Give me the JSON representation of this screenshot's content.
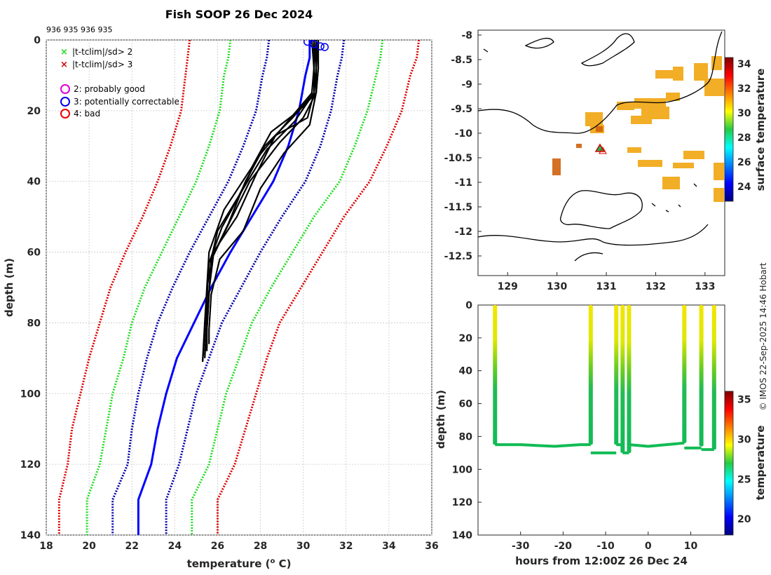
{
  "title": "Fish SOOP 26 Dec 2024",
  "station_ids": "936 935 936 935",
  "credit": "© IMOS 22-Sep-2025 14:46 Hobart",
  "legend": {
    "x_green": "|t-tclim|/sd> 2",
    "x_red": "|t-tclim|/sd> 3",
    "flag2": "2: probably good",
    "flag3": "3: potentially correctable",
    "flag4": "4: bad"
  },
  "colors": {
    "profile": "#000000",
    "climatology": "#0000ff",
    "sd1": "#0000aa",
    "sd2": "#22dd22",
    "sd3": "#dd0000",
    "flag2": "#dd00dd",
    "flag3": "#0000ee",
    "flag4": "#ee0000",
    "coast": "#000000",
    "sst": "#f0a000",
    "marker": "#dd0000"
  },
  "chart_data": [
    {
      "type": "line",
      "name": "profile",
      "title": "Fish SOOP 26 Dec 2024",
      "xlabel": "temperature (",
      "xlabel_sup": "o",
      "xlabel_end": " C)",
      "ylabel": "depth (m)",
      "xlim": [
        18,
        36
      ],
      "ylim": [
        140,
        0
      ],
      "xticks": [
        18,
        20,
        22,
        24,
        26,
        28,
        30,
        32,
        34,
        36
      ],
      "yticks": [
        0,
        20,
        40,
        60,
        80,
        100,
        120,
        140
      ],
      "depth": [
        0,
        5,
        10,
        20,
        30,
        40,
        50,
        60,
        70,
        80,
        90,
        100,
        110,
        120,
        130,
        140
      ],
      "climatology_mean": [
        30.3,
        30.3,
        30.1,
        29.8,
        29.3,
        28.6,
        27.6,
        26.6,
        25.7,
        24.9,
        24.1,
        23.6,
        23.2,
        22.9,
        22.3,
        22.3
      ],
      "sd_bands": [
        {
          "name": "+1sd",
          "values": [
            31.9,
            31.8,
            31.6,
            31.3,
            30.8,
            30.1,
            29.0,
            28.0,
            27.1,
            26.2,
            25.6,
            25.0,
            24.6,
            24.2,
            23.6,
            23.6
          ]
        },
        {
          "name": "-1sd",
          "values": [
            28.4,
            28.3,
            28.1,
            27.8,
            27.2,
            26.5,
            25.6,
            24.7,
            23.9,
            23.2,
            22.7,
            22.3,
            22.0,
            21.8,
            21.1,
            21.1
          ]
        },
        {
          "name": "+2sd",
          "values": [
            33.7,
            33.6,
            33.4,
            33.0,
            32.4,
            31.7,
            30.5,
            29.5,
            28.5,
            27.6,
            27.0,
            26.4,
            26.0,
            25.6,
            24.8,
            24.8
          ]
        },
        {
          "name": "-2sd",
          "values": [
            26.6,
            26.5,
            26.3,
            26.1,
            25.6,
            25.0,
            24.2,
            23.4,
            22.6,
            22.0,
            21.6,
            21.1,
            20.8,
            20.5,
            19.9,
            19.9
          ]
        },
        {
          "name": "+3sd",
          "values": [
            35.4,
            35.3,
            35.0,
            34.6,
            33.9,
            33.1,
            31.9,
            30.9,
            29.9,
            28.9,
            28.3,
            27.8,
            27.3,
            26.8,
            26.0,
            26.0
          ]
        },
        {
          "name": "-3sd",
          "values": [
            24.7,
            24.6,
            24.5,
            24.3,
            23.8,
            23.2,
            22.5,
            21.7,
            21.0,
            20.5,
            20.0,
            19.6,
            19.2,
            19.0,
            18.6,
            18.6
          ]
        }
      ],
      "profiles": [
        {
          "t": [
            30.4,
            30.5,
            30.5,
            30.2,
            28.7,
            27.8,
            26.9,
            25.8,
            25.5,
            25.5,
            25.4
          ],
          "d": [
            0,
            8,
            15,
            22,
            27,
            38,
            50,
            60,
            70,
            80,
            90
          ]
        },
        {
          "t": [
            30.6,
            30.6,
            30.5,
            29.5,
            28.2,
            27.3,
            26.5,
            25.7,
            25.6,
            25.5,
            25.5
          ],
          "d": [
            0,
            8,
            15,
            22,
            30,
            40,
            52,
            62,
            72,
            82,
            88
          ]
        },
        {
          "t": [
            30.5,
            30.6,
            30.6,
            30.3,
            29.1,
            28.0,
            27.2,
            26.1,
            25.7,
            25.6,
            25.6
          ],
          "d": [
            0,
            8,
            15,
            24,
            32,
            42,
            54,
            62,
            72,
            82,
            86
          ]
        },
        {
          "t": [
            30.7,
            30.7,
            30.6,
            29.8,
            28.5,
            27.6,
            26.3,
            25.6,
            25.5,
            25.4,
            25.3
          ],
          "d": [
            0,
            8,
            15,
            20,
            26,
            36,
            48,
            60,
            70,
            80,
            91
          ]
        },
        {
          "t": [
            30.5,
            30.5,
            30.4,
            29.0,
            27.9,
            27.0,
            26.0,
            25.7,
            25.6,
            25.5,
            25.4
          ],
          "d": [
            0,
            8,
            15,
            25,
            33,
            44,
            54,
            62,
            72,
            82,
            89
          ]
        },
        {
          "t": [
            30.6,
            30.7,
            30.6,
            30.0,
            28.9,
            27.5,
            26.6,
            25.8,
            25.6,
            25.5,
            25.5
          ],
          "d": [
            0,
            8,
            15,
            22,
            29,
            40,
            51,
            61,
            71,
            81,
            87
          ]
        },
        {
          "t": [
            30.6,
            30.6,
            30.5,
            29.6,
            28.3,
            27.2,
            26.2,
            25.6,
            25.5,
            25.4,
            25.3
          ],
          "d": [
            0,
            8,
            15,
            23,
            31,
            42,
            53,
            63,
            73,
            83,
            91
          ]
        }
      ],
      "flag3_points": [
        [
          30.2,
          0.5
        ],
        [
          30.5,
          1.2
        ],
        [
          30.8,
          1.8
        ],
        [
          31.0,
          2.0
        ]
      ]
    },
    {
      "type": "heatmap",
      "name": "map",
      "xlim": [
        128.4,
        133.4
      ],
      "ylim": [
        -12.9,
        -7.9
      ],
      "xticks": [
        129,
        130,
        131,
        132,
        133
      ],
      "yticks": [
        -8,
        -8.5,
        -9,
        -9.5,
        -10,
        -10.5,
        -11,
        -11.5,
        -12,
        -12.5
      ],
      "colorbar_label": "surface temperature",
      "colorbar_range": [
        22.8,
        34.5
      ],
      "colorbar_ticks": [
        24,
        26,
        28,
        30,
        32,
        34
      ],
      "drop_location": [
        130.9,
        -10.35
      ]
    },
    {
      "type": "scatter",
      "name": "time-depth",
      "xlabel": "hours from 12:00Z 26 Dec 24",
      "ylabel": "depth (m)",
      "xlim": [
        -40,
        18
      ],
      "ylim": [
        140,
        0
      ],
      "xticks": [
        -30,
        -20,
        -10,
        0,
        10
      ],
      "yticks": [
        0,
        20,
        40,
        60,
        80,
        100,
        120,
        140
      ],
      "colorbar_label": "temperature",
      "colorbar_range": [
        18,
        36
      ],
      "colorbar_ticks": [
        20,
        25,
        30,
        35
      ],
      "drops": [
        {
          "h": -36,
          "max_depth": 85
        },
        {
          "h": -13.5,
          "max_depth": 85
        },
        {
          "h": -7.5,
          "max_depth": 85
        },
        {
          "h": -6,
          "max_depth": 90
        },
        {
          "h": -4.5,
          "max_depth": 90
        },
        {
          "h": 8.5,
          "max_depth": 84
        },
        {
          "h": 12.5,
          "max_depth": 86
        },
        {
          "h": 15.5,
          "max_depth": 88
        }
      ],
      "tow_depth_segments": [
        {
          "h": [
            -36,
            -30,
            -22,
            -16,
            -13.5
          ],
          "d": [
            85,
            85,
            86,
            85,
            85
          ]
        },
        {
          "h": [
            -13.5,
            -7.5
          ],
          "d": [
            90,
            90
          ]
        },
        {
          "h": [
            -7.5,
            -6
          ],
          "d": [
            85,
            85
          ]
        },
        {
          "h": [
            -6,
            -4.5
          ],
          "d": [
            90,
            90
          ]
        },
        {
          "h": [
            -4.5,
            0,
            8.5
          ],
          "d": [
            85,
            86,
            84
          ]
        },
        {
          "h": [
            8.5,
            12.5
          ],
          "d": [
            87,
            87
          ]
        },
        {
          "h": [
            12.5,
            15.5
          ],
          "d": [
            88,
            88
          ]
        }
      ]
    }
  ]
}
